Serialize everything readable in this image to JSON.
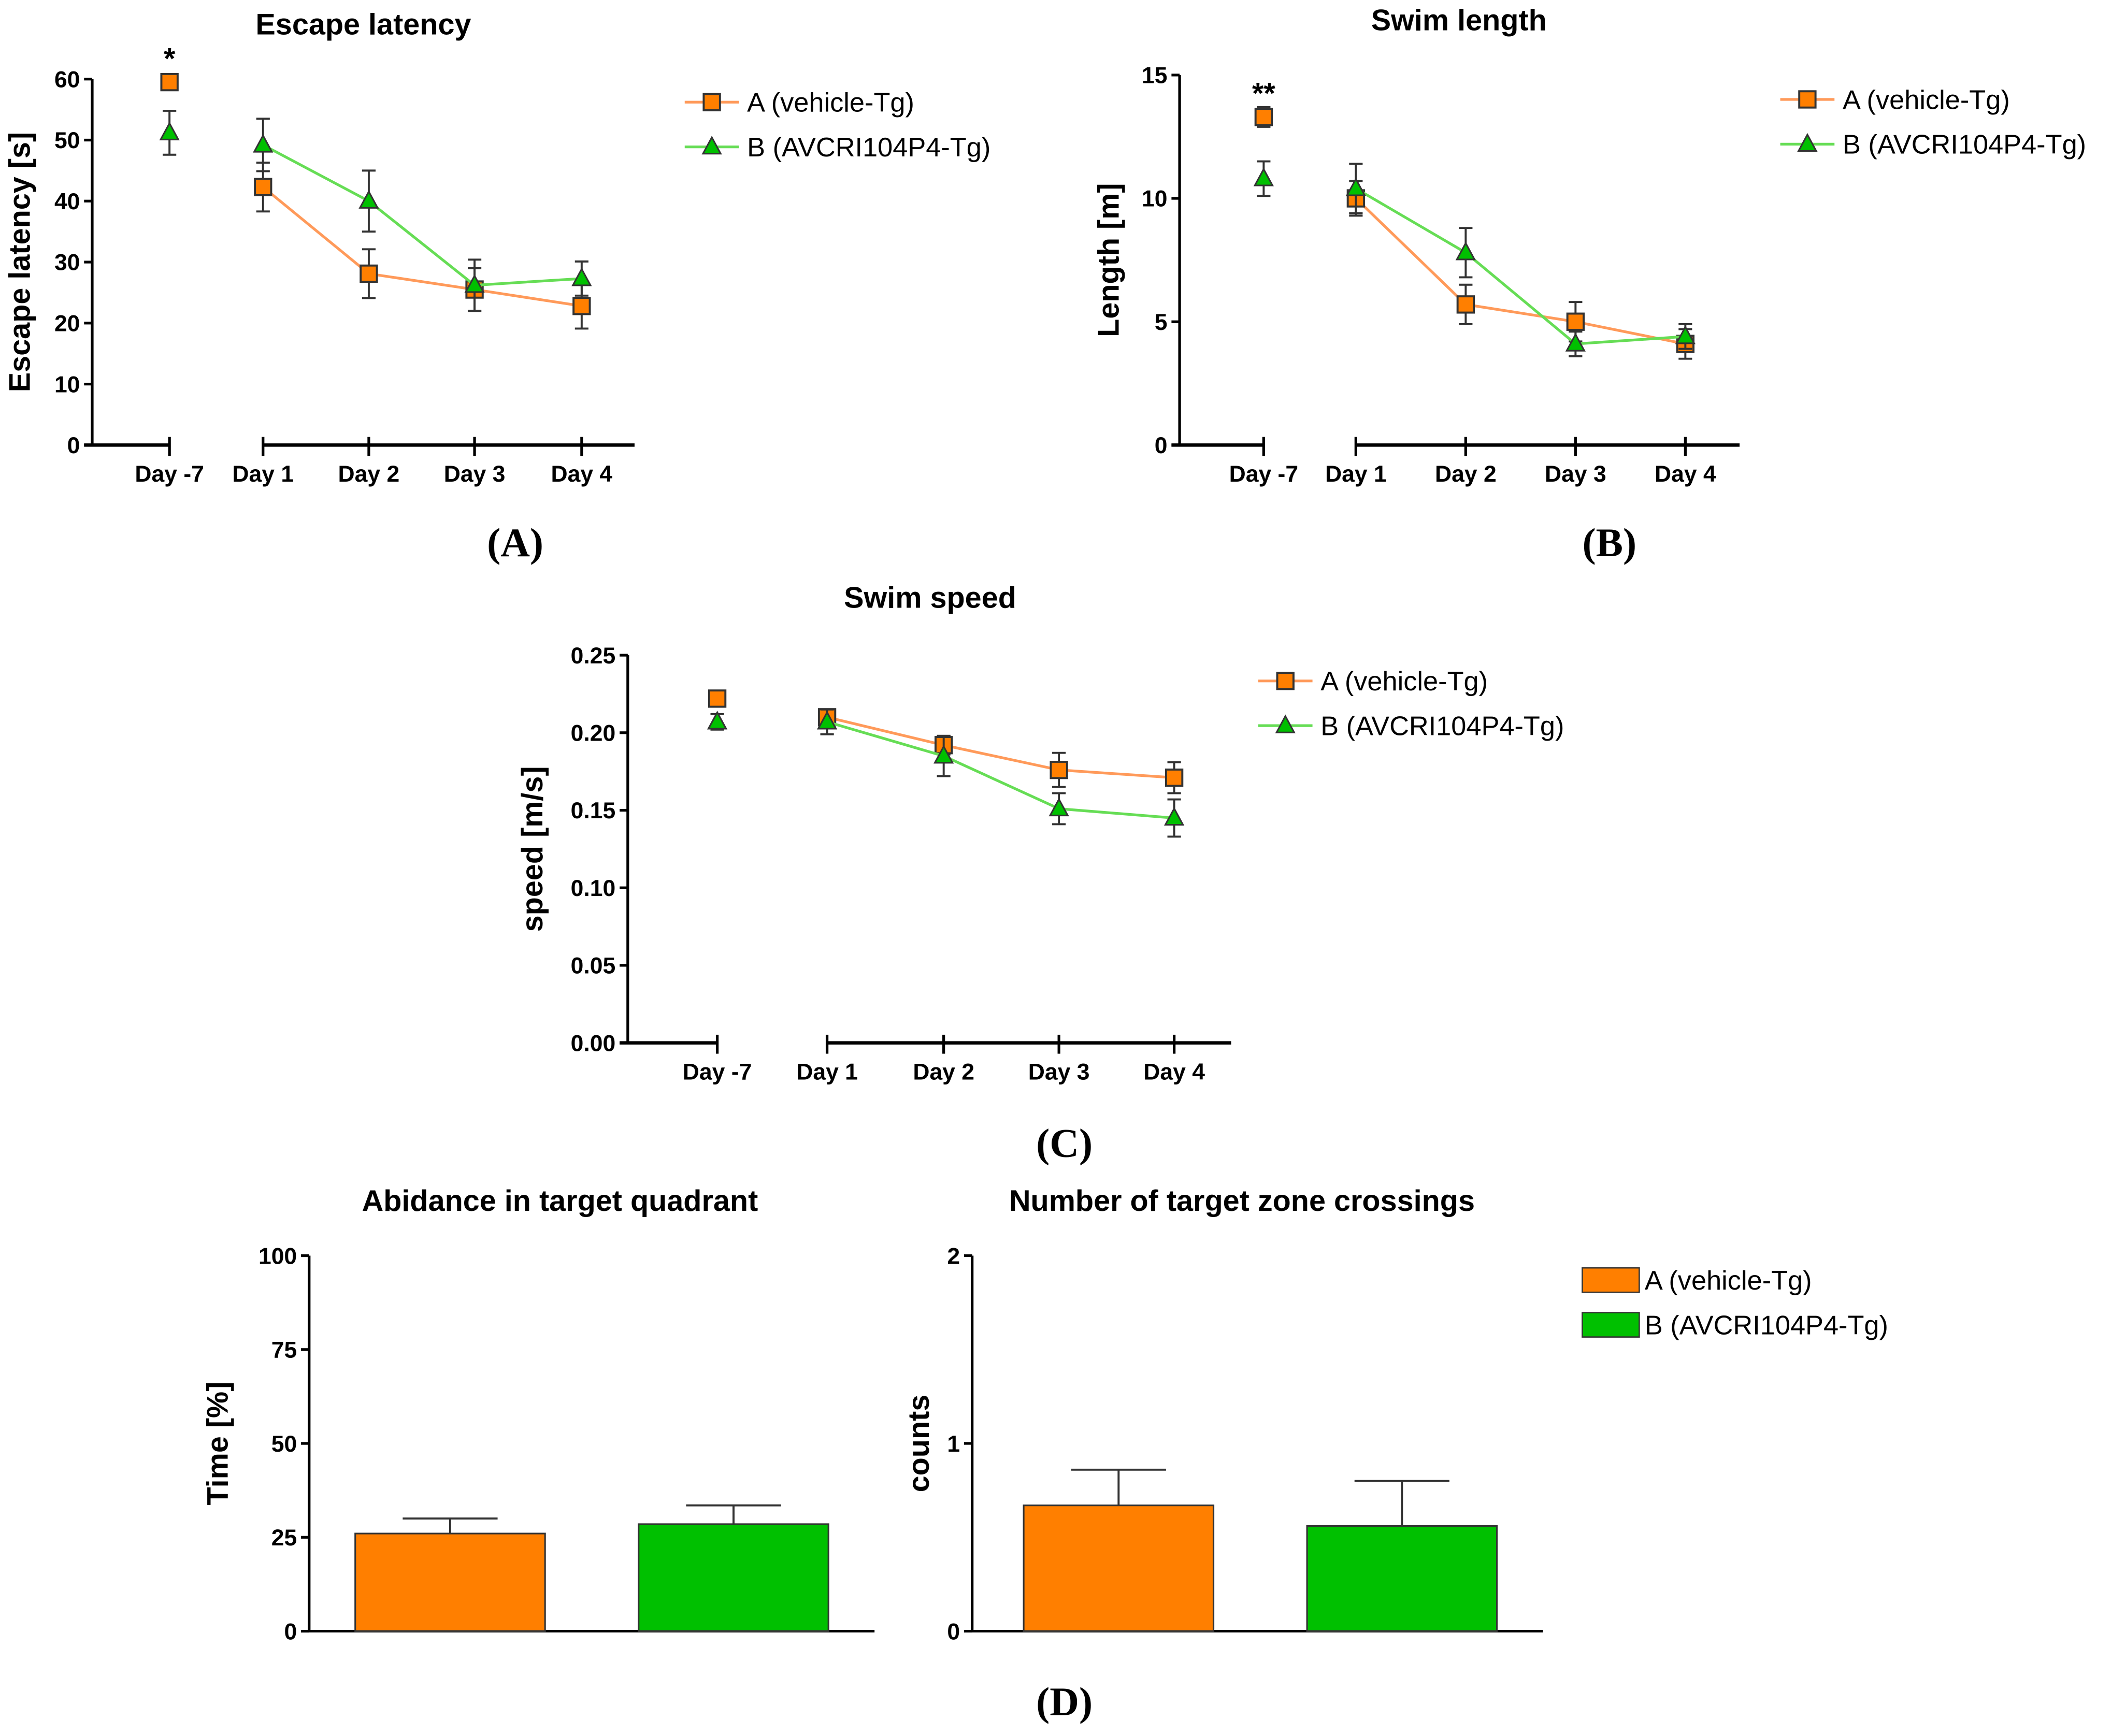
{
  "colors": {
    "A": "#ff7f00",
    "A_line": "#ff9a5a",
    "B": "#00c000",
    "B_line": "#66dd55",
    "axis": "#000000"
  },
  "legend": [
    "A (vehicle-Tg)",
    "B (AVCRI104P4-Tg)"
  ],
  "panel_labels": [
    "(A)",
    "(B)",
    "(C)",
    "(D)"
  ],
  "chart_data": [
    {
      "type": "line",
      "title": "Escape latency",
      "ylabel": "Escape latency [s]",
      "xlabel": "",
      "ylim": [
        0,
        60
      ],
      "yticks": [
        "0",
        "10",
        "20",
        "30",
        "40",
        "50",
        "60"
      ],
      "categories": [
        "Day -7",
        "Day 1",
        "Day 2",
        "Day 3",
        "Day 4"
      ],
      "annotation": "*",
      "series": [
        {
          "name": "A (vehicle-Tg)",
          "values": [
            59.5,
            42.3,
            28.1,
            25.5,
            22.8
          ],
          "errors": [
            0,
            4,
            4,
            3.5,
            3.7
          ]
        },
        {
          "name": "B (AVCRI104P4-Tg)",
          "values": [
            51.2,
            49.2,
            40.0,
            26.2,
            27.3
          ],
          "errors": [
            3.6,
            4.3,
            5,
            4.2,
            2.8
          ]
        }
      ],
      "legend": "top-right"
    },
    {
      "type": "line",
      "title": "Swim length",
      "ylabel": "Length [m]",
      "xlabel": "",
      "ylim": [
        0,
        15
      ],
      "yticks": [
        "0",
        "5",
        "10",
        "15"
      ],
      "categories": [
        "Day -7",
        "Day 1",
        "Day 2",
        "Day 3",
        "Day 4"
      ],
      "annotation": "**",
      "series": [
        {
          "name": "A (vehicle-Tg)",
          "values": [
            13.3,
            10.0,
            5.7,
            5.0,
            4.1
          ],
          "errors": [
            0.4,
            0.7,
            0.8,
            0.8,
            0.6
          ]
        },
        {
          "name": "B (AVCRI104P4-Tg)",
          "values": [
            10.8,
            10.4,
            7.8,
            4.1,
            4.4
          ],
          "errors": [
            0.7,
            1.0,
            1.0,
            0.5,
            0.5
          ]
        }
      ],
      "legend": "top-right"
    },
    {
      "type": "line",
      "title": "Swim speed",
      "ylabel": "speed [m/s]",
      "xlabel": "",
      "ylim": [
        0,
        0.25
      ],
      "yticks": [
        "0.00",
        "0.05",
        "0.10",
        "0.15",
        "0.20",
        "0.25"
      ],
      "categories": [
        "Day -7",
        "Day 1",
        "Day 2",
        "Day 3",
        "Day 4"
      ],
      "annotation": "",
      "series": [
        {
          "name": "A (vehicle-Tg)",
          "values": [
            0.222,
            0.21,
            0.192,
            0.176,
            0.171
          ],
          "errors": [
            0.004,
            0.005,
            0.006,
            0.011,
            0.01
          ]
        },
        {
          "name": "B (AVCRI104P4-Tg)",
          "values": [
            0.207,
            0.207,
            0.185,
            0.151,
            0.145
          ],
          "errors": [
            0.005,
            0.008,
            0.013,
            0.01,
            0.012
          ]
        }
      ],
      "legend": "top-right"
    },
    {
      "type": "bar",
      "title": "Abidance in target quadrant",
      "ylabel": "Time [%]",
      "ylim": [
        0,
        100
      ],
      "yticks": [
        "0",
        "25",
        "50",
        "75",
        "100"
      ],
      "categories": [
        "A (vehicle-Tg)",
        "B (AVCRI104P4-Tg)"
      ],
      "values": [
        26,
        28.5
      ],
      "errors": [
        4,
        5
      ]
    },
    {
      "type": "bar",
      "title": "Number of target zone crossings",
      "ylabel": "counts",
      "ylim": [
        0,
        2
      ],
      "yticks": [
        "0",
        "1",
        "2"
      ],
      "categories": [
        "A (vehicle-Tg)",
        "B (AVCRI104P4-Tg)"
      ],
      "values": [
        0.67,
        0.56
      ],
      "errors": [
        0.19,
        0.24
      ],
      "legend": "right"
    }
  ]
}
